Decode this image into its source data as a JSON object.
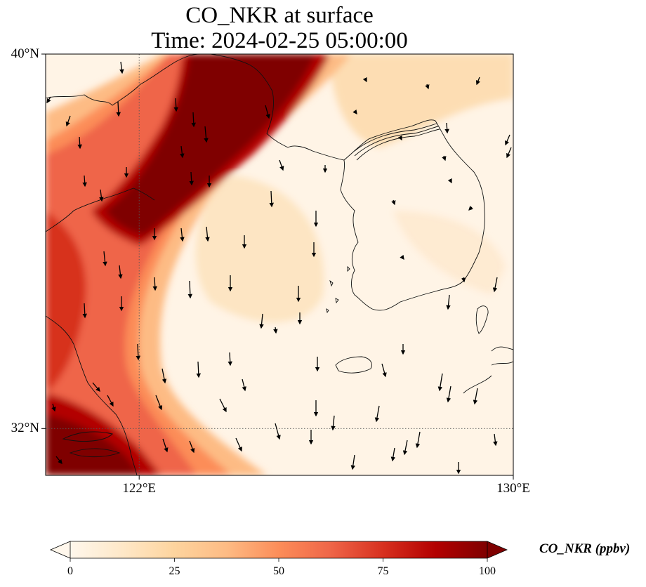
{
  "title": {
    "line1": "CO_NKR at surface",
    "line2": "Time: 2024-02-25 05:00:00"
  },
  "map": {
    "lon_range": [
      120,
      130
    ],
    "lat_range": [
      31,
      40
    ],
    "lat_labels": [
      {
        "lat": 40,
        "text": "40°N"
      },
      {
        "lat": 32,
        "text": "32°N"
      }
    ],
    "lon_labels": [
      {
        "lon": 122,
        "text": "122°E"
      },
      {
        "lon": 130,
        "text": "130°E"
      }
    ],
    "gridlines": {
      "lon": [
        122
      ],
      "lat": [
        32
      ],
      "style": "dotted"
    },
    "field": "CO_NKR",
    "field_colormap": "OrRd",
    "field_description": "High concentrations along the Chinese east coast (Bohai/Shandong plume and Yangtze region); low values over the Yellow Sea and Korean peninsula",
    "wind_vectors": "mostly southward / south-southwestward arrows",
    "coastlines": true
  },
  "colorbar": {
    "title": "CO_NKR (ppbv)",
    "min": 0,
    "max": 100,
    "extend": "both",
    "ticks": [
      {
        "value": 0,
        "text": "0"
      },
      {
        "value": 25,
        "text": "25"
      },
      {
        "value": 50,
        "text": "50"
      },
      {
        "value": 75,
        "text": "75"
      },
      {
        "value": 100,
        "text": "100"
      }
    ],
    "stops": [
      {
        "value": 0,
        "color": "#fff7ec"
      },
      {
        "value": 12.5,
        "color": "#fee8c8"
      },
      {
        "value": 25,
        "color": "#fdd49e"
      },
      {
        "value": 37.5,
        "color": "#fdbb84"
      },
      {
        "value": 50,
        "color": "#fc8d59"
      },
      {
        "value": 62.5,
        "color": "#ef6548"
      },
      {
        "value": 75,
        "color": "#d7301f"
      },
      {
        "value": 87.5,
        "color": "#b30000"
      },
      {
        "value": 100,
        "color": "#7f0000"
      }
    ]
  }
}
